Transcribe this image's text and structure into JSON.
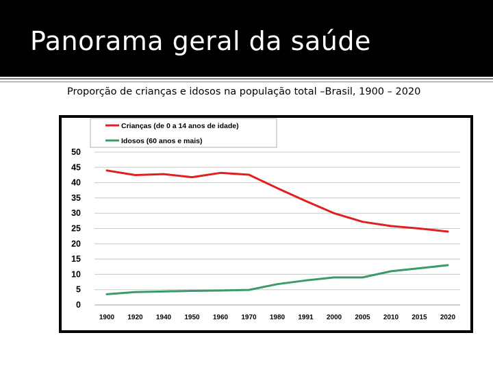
{
  "slide": {
    "title": "Panorama geral da saúde",
    "subtitle": "Proporção de crianças e idosos na população total –Brasil, 1900 – 2020"
  },
  "colors": {
    "title_bar": "#000000",
    "title_text": "#ffffff",
    "series_children": "#e02020",
    "series_elderly": "#3a9a6a",
    "grid": "#c8c8c8"
  },
  "chart_data": {
    "type": "line",
    "categories": [
      "1900",
      "1920",
      "1940",
      "1950",
      "1960",
      "1970",
      "1980",
      "1991",
      "2000",
      "2005",
      "2010",
      "2015",
      "2020"
    ],
    "series": [
      {
        "name": "Crianças (de 0 a 14 anos de idade)",
        "values": [
          44,
          42.5,
          42.8,
          41.8,
          43.2,
          42.6,
          38.2,
          34,
          30,
          27.2,
          25.8,
          25,
          24
        ]
      },
      {
        "name": "Idosos (60 anos e mais)",
        "values": [
          3.5,
          4.2,
          4.4,
          4.6,
          4.7,
          4.9,
          6.8,
          8,
          9,
          9,
          11,
          12,
          13
        ]
      }
    ],
    "y_ticks": [
      "50",
      "45",
      "40",
      "35",
      "30",
      "25",
      "20",
      "15",
      "10",
      "5",
      "0"
    ],
    "ylim": [
      0,
      50
    ],
    "grid": true,
    "legend_position": "top-left"
  }
}
